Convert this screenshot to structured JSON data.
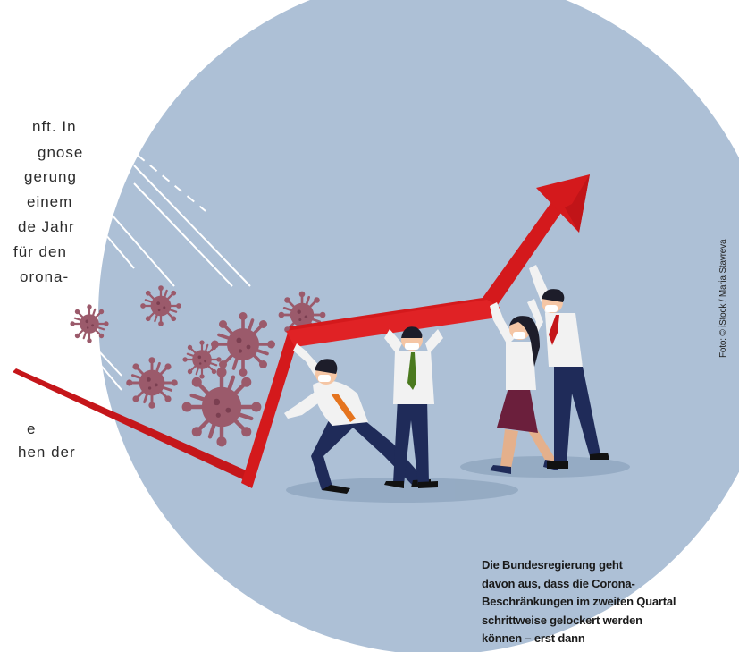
{
  "body_text": {
    "lines": [
      "nft. In",
      "gnose",
      "gerung",
      "einem",
      "de Jahr",
      "für den",
      "orona-",
      "e",
      "hen der"
    ]
  },
  "caption": {
    "lines": [
      "Die Bundesregierung geht",
      "davon aus, dass die Corona-",
      "Beschränkungen im zweiten Quartal",
      "schrittweise gelockert werden",
      "können – erst dann"
    ]
  },
  "photo_credit": "Foto: © iStock / Maria Stavreva",
  "colors": {
    "circle": "#adc0d6",
    "arrow": "#d4191c",
    "virus": "#9b5a6b",
    "shirt": "#f1f1f1",
    "trousers": "#1f2b59"
  },
  "illustration": {
    "icon": "business-team-pushing-growth-arrow-past-virus-illustration"
  }
}
